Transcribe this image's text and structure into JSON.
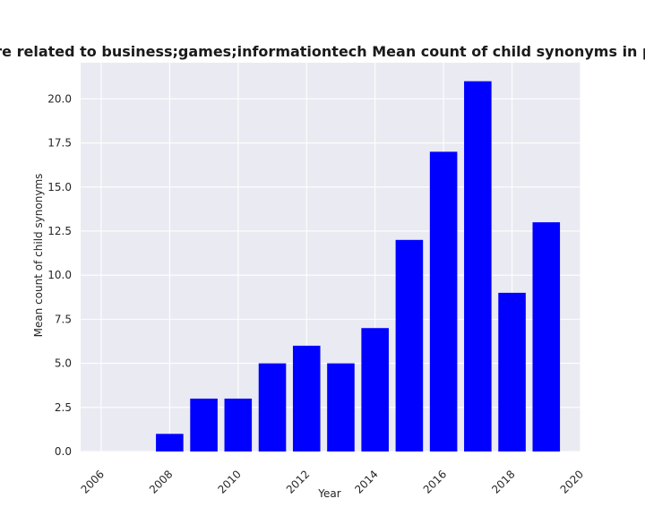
{
  "chart_data": {
    "type": "bar",
    "title": "Categories are related to business;games;informationtech Mean count of child synonyms in privacy policies",
    "xlabel": "Year",
    "ylabel": "Mean count of child synonyms",
    "x": [
      2008,
      2009,
      2010,
      2011,
      2012,
      2013,
      2014,
      2015,
      2016,
      2017,
      2018,
      2019
    ],
    "values": [
      1,
      3,
      3,
      5,
      6,
      5,
      7,
      12,
      17,
      21,
      9,
      13
    ],
    "xlim": [
      2005.4,
      2020.0
    ],
    "ylim": [
      0,
      22.05
    ],
    "xticks": [
      "2006",
      "2008",
      "2010",
      "2012",
      "2014",
      "2016",
      "2018",
      "2020"
    ],
    "yticks": [
      "0.0",
      "2.5",
      "5.0",
      "7.5",
      "10.0",
      "12.5",
      "15.0",
      "17.5",
      "20.0"
    ],
    "bar_color": "#0000ff",
    "background": "#eaeaf2",
    "grid": true
  }
}
